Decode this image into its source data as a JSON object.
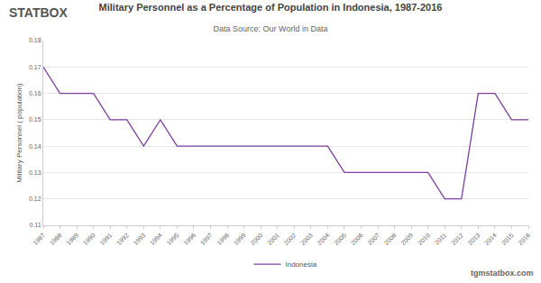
{
  "chart_data": {
    "type": "line",
    "title": "Military Personnel as a Percentage of Population in Indonesia, 1987-2016",
    "subtitle": "Data Source: Our World in Data",
    "y_label": "Military Personnel ( population)",
    "annotations": [
      "STATBOX",
      "tgmstatbox.com"
    ],
    "x": [
      1987,
      1988,
      1989,
      1990,
      1991,
      1992,
      1993,
      1994,
      1995,
      1996,
      1997,
      1998,
      1999,
      2000,
      2001,
      2002,
      2003,
      2004,
      2005,
      2006,
      2007,
      2008,
      2009,
      2010,
      2011,
      2012,
      2013,
      2014,
      2015,
      2016
    ],
    "series": [
      {
        "name": "Indonesia",
        "color": "#7b3f9e",
        "values": [
          0.17,
          0.16,
          0.16,
          0.16,
          0.15,
          0.15,
          0.14,
          0.15,
          0.14,
          0.14,
          0.14,
          0.14,
          0.14,
          0.14,
          0.14,
          0.14,
          0.14,
          0.14,
          0.13,
          0.13,
          0.13,
          0.13,
          0.13,
          0.13,
          0.12,
          0.12,
          0.16,
          0.16,
          0.15,
          0.15
        ]
      }
    ],
    "xlim": [
      1987,
      2016
    ],
    "xticks": [
      1987,
      1988,
      1989,
      1990,
      1991,
      1992,
      1993,
      1994,
      1995,
      1996,
      1997,
      1998,
      1999,
      2000,
      2001,
      2002,
      2003,
      2004,
      2005,
      2006,
      2007,
      2008,
      2009,
      2010,
      2011,
      2012,
      2013,
      2014,
      2015,
      2016
    ],
    "ylim": [
      0.11,
      0.18
    ],
    "yticks": [
      0.11,
      0.12,
      0.13,
      0.14,
      0.15,
      0.16,
      0.17,
      0.18
    ],
    "grid": true,
    "legend": "bottom"
  }
}
